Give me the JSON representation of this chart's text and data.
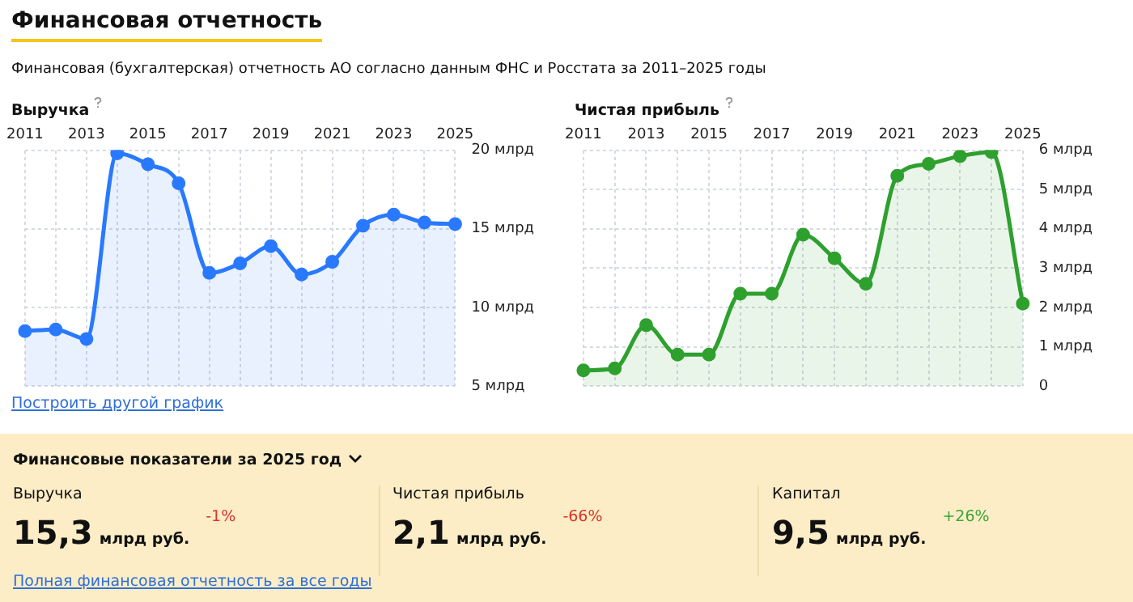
{
  "chart_data": [
    {
      "type": "other",
      "title": "Финансовая отчетность",
      "subtitle": "Финансовая (бухгалтерская) отчетность АО согласно данным ФНС и Росстата за 2011–2025 годы"
    },
    {
      "type": "area",
      "title": "Выручка",
      "categories": [
        "2011",
        null,
        "2013",
        null,
        "2015",
        null,
        "2017",
        null,
        "2019",
        null,
        "2021",
        null,
        "2023",
        null,
        "2025"
      ],
      "series": [
        {
          "color": "#2979ff",
          "values": [
            8.5,
            8.6,
            8.0,
            19.8,
            19.1,
            17.9,
            12.2,
            12.8,
            13.9,
            12.1,
            12.9,
            15.2,
            15.9,
            15.4,
            15.3
          ]
        }
      ],
      "ylim": [
        5,
        20
      ],
      "yticks": [
        {
          "value": 5,
          "label": "5 млрд"
        },
        {
          "value": 10,
          "label": "10 млрд"
        },
        {
          "value": 15,
          "label": "15 млрд"
        },
        {
          "value": 20,
          "label": "20 млрд"
        }
      ],
      "grid": true,
      "legend": false,
      "marker": "circle",
      "line_style": "solid",
      "annotations": [
        "Построить другой график"
      ]
    },
    {
      "type": "area",
      "title": "Чистая прибыль",
      "categories": [
        "2011",
        null,
        "2013",
        null,
        "2015",
        null,
        "2017",
        null,
        "2019",
        null,
        "2021",
        null,
        "2023",
        null,
        "2025"
      ],
      "series": [
        {
          "color": "#2ea02e",
          "values": [
            0.4,
            0.45,
            1.55,
            0.8,
            0.8,
            2.35,
            2.35,
            3.85,
            3.25,
            2.6,
            5.35,
            5.65,
            5.85,
            5.95,
            2.1
          ]
        }
      ],
      "ylim": [
        0,
        6
      ],
      "yticks": [
        0,
        {
          "value": 1,
          "label": "1 млрд"
        },
        {
          "value": 2,
          "label": "2 млрд"
        },
        {
          "value": 3,
          "label": "3 млрд"
        },
        {
          "value": 4,
          "label": "4 млрд"
        },
        {
          "value": 5,
          "label": "5 млрд"
        },
        {
          "value": 6,
          "label": "6 млрд"
        }
      ],
      "grid": true,
      "legend": false,
      "marker": "circle",
      "line_style": "solid"
    },
    {
      "type": "other",
      "title": "Финансовые показатели за 2025 год",
      "categories": [
        "Выручка",
        "Чистая прибыль",
        "Капитал"
      ],
      "value_labels": [
        "15,3",
        "2,1",
        "9,5"
      ],
      "annotations": [
        "млрд руб.",
        "млрд руб.",
        "млрд руб.",
        "-1%",
        "-66%",
        "+26%",
        "Полная финансовая отчетность за все годы"
      ]
    }
  ]
}
